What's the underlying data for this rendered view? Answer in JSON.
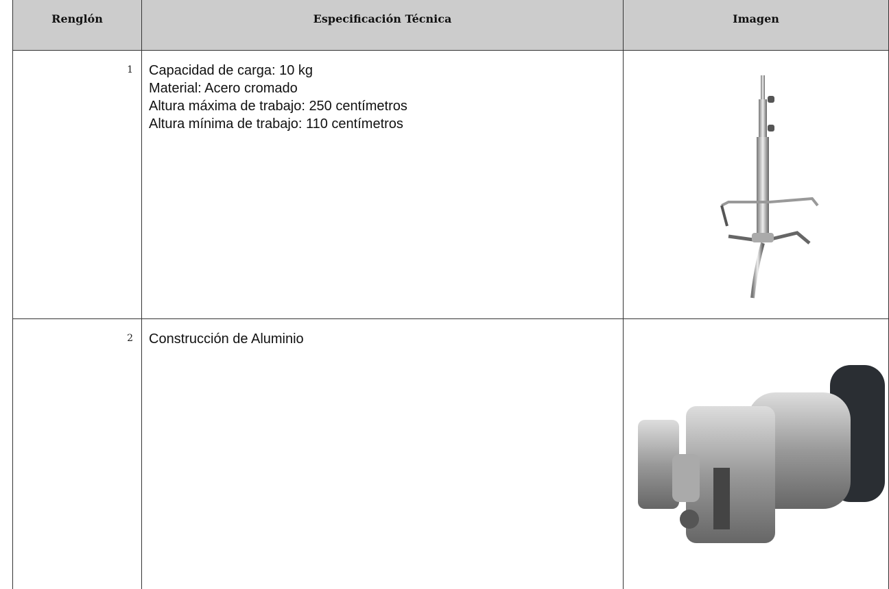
{
  "table": {
    "headers": [
      "Renglón",
      "Especificación Técnica",
      "Imagen"
    ],
    "rows": [
      {
        "number": 1,
        "lines": [
          "Capacidad de carga: 10 kg",
          "Material: Acero cromado",
          "Altura máxima de trabajo: 250 centímetros",
          "Altura mínima de trabajo: 110 centímetros"
        ]
      },
      {
        "number": 2,
        "lines": [
          "Construcción de Aluminio"
        ]
      }
    ]
  }
}
